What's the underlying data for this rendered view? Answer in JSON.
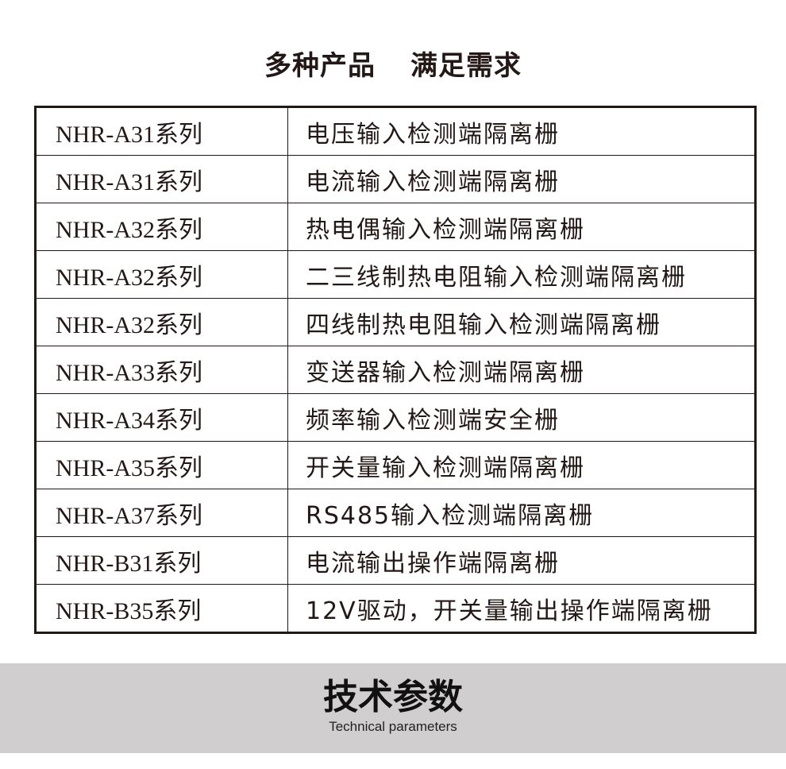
{
  "header": {
    "title_left": "多种产品",
    "title_right": "满足需求"
  },
  "table": {
    "rows": [
      {
        "model": "NHR-A31系列",
        "desc": "电压输入检测端隔离栅"
      },
      {
        "model": "NHR-A31系列",
        "desc": "电流输入检测端隔离栅"
      },
      {
        "model": "NHR-A32系列",
        "desc": "热电偶输入检测端隔离栅"
      },
      {
        "model": "NHR-A32系列",
        "desc": "二三线制热电阻输入检测端隔离栅"
      },
      {
        "model": "NHR-A32系列",
        "desc": "四线制热电阻输入检测端隔离栅"
      },
      {
        "model": "NHR-A33系列",
        "desc": "变送器输入检测端隔离栅"
      },
      {
        "model": "NHR-A34系列",
        "desc": "频率输入检测端安全栅"
      },
      {
        "model": "NHR-A35系列",
        "desc": "开关量输入检测端隔离栅"
      },
      {
        "model": "NHR-A37系列",
        "desc": "RS485输入检测端隔离栅"
      },
      {
        "model": "NHR-B31系列",
        "desc": "电流输出操作端隔离栅"
      },
      {
        "model": "NHR-B35系列",
        "desc": "12V驱动，开关量输出操作端隔离栅"
      }
    ]
  },
  "section": {
    "title": "技术参数",
    "subtitle": "Technical parameters",
    "background": "#d0cecf"
  }
}
